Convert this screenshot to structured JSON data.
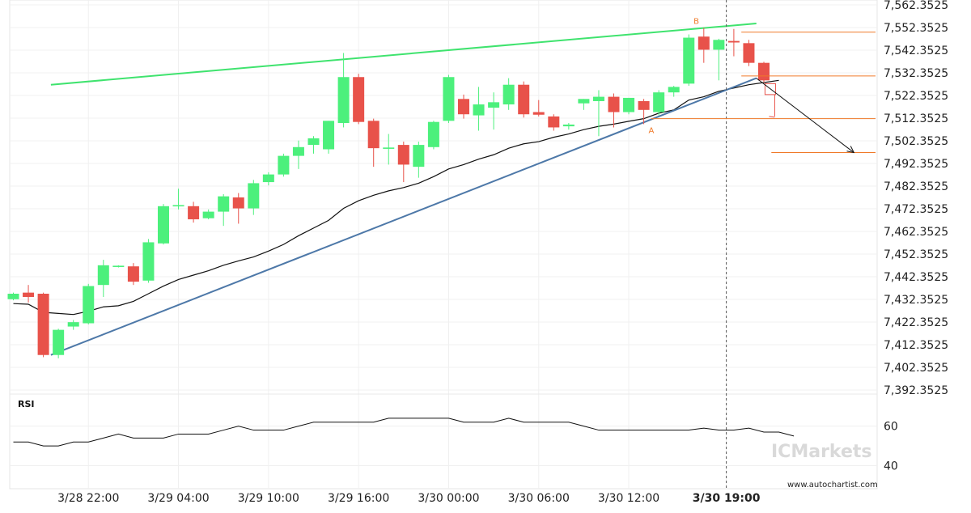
{
  "chart_data": {
    "type": "candlestick",
    "instrument_timeframe": "hourly",
    "colors": {
      "up": "#4cf07c",
      "down": "#e8524a",
      "trend_up": "#3fe36e",
      "trend_support": "#4d78a8",
      "ma": "#111111",
      "level": "#f07a2a",
      "forecast_arrow": "#111111"
    },
    "price_axis": {
      "ticks": [
        "7,562.3525",
        "7,552.3525",
        "7,542.3525",
        "7,532.3525",
        "7,522.3525",
        "7,512.3525",
        "7,502.3525",
        "7,492.3525",
        "7,482.3525",
        "7,472.3525",
        "7,462.3525",
        "7,452.3525",
        "7,442.3525",
        "7,432.3525",
        "7,422.3525",
        "7,412.3525",
        "7,402.3525",
        "7,392.3525"
      ],
      "range": [
        7388.0,
        7564.0
      ]
    },
    "time_axis": {
      "labels": [
        "3/28 22:00",
        "3/29 04:00",
        "3/29 10:00",
        "3/29 16:00",
        "3/30 00:00",
        "3/30 06:00",
        "3/30 12:00",
        "3/30 19:00"
      ],
      "label_candle_index": [
        5,
        11,
        17,
        23,
        29,
        35,
        41,
        47.5
      ],
      "current_label": "3/30 19:00"
    },
    "candles": [
      {
        "o": 7429.5,
        "h": 7432.5,
        "l": 7429.0,
        "c": 7432.0
      },
      {
        "o": 7432.5,
        "h": 7436.0,
        "l": 7428.0,
        "c": 7430.5
      },
      {
        "o": 7432.0,
        "h": 7432.5,
        "l": 7403.0,
        "c": 7404.0
      },
      {
        "o": 7404.0,
        "h": 7416.0,
        "l": 7402.5,
        "c": 7415.5
      },
      {
        "o": 7417.0,
        "h": 7420.0,
        "l": 7415.5,
        "c": 7419.0
      },
      {
        "o": 7418.5,
        "h": 7436.5,
        "l": 7418.0,
        "c": 7435.5
      },
      {
        "o": 7436.0,
        "h": 7447.5,
        "l": 7430.5,
        "c": 7445.0
      },
      {
        "o": 7444.5,
        "h": 7445.0,
        "l": 7444.0,
        "c": 7444.8
      },
      {
        "o": 7444.5,
        "h": 7446.0,
        "l": 7436.0,
        "c": 7437.5
      },
      {
        "o": 7438.0,
        "h": 7457.0,
        "l": 7437.0,
        "c": 7455.5
      },
      {
        "o": 7455.0,
        "h": 7473.0,
        "l": 7454.5,
        "c": 7472.0
      },
      {
        "o": 7472.0,
        "h": 7480.0,
        "l": 7470.5,
        "c": 7472.5
      },
      {
        "o": 7472.0,
        "h": 7474.0,
        "l": 7464.5,
        "c": 7466.0
      },
      {
        "o": 7466.5,
        "h": 7470.5,
        "l": 7466.0,
        "c": 7469.5
      },
      {
        "o": 7469.5,
        "h": 7477.5,
        "l": 7463.0,
        "c": 7476.5
      },
      {
        "o": 7476.0,
        "h": 7478.0,
        "l": 7464.0,
        "c": 7471.0
      },
      {
        "o": 7471.0,
        "h": 7484.0,
        "l": 7468.0,
        "c": 7482.5
      },
      {
        "o": 7483.0,
        "h": 7487.5,
        "l": 7481.5,
        "c": 7486.5
      },
      {
        "o": 7486.5,
        "h": 7496.0,
        "l": 7485.5,
        "c": 7495.0
      },
      {
        "o": 7495.0,
        "h": 7502.0,
        "l": 7489.0,
        "c": 7499.0
      },
      {
        "o": 7500.0,
        "h": 7504.0,
        "l": 7496.0,
        "c": 7503.0
      },
      {
        "o": 7498.0,
        "h": 7511.0,
        "l": 7496.0,
        "c": 7511.0
      },
      {
        "o": 7510.0,
        "h": 7542.0,
        "l": 7508.0,
        "c": 7531.0
      },
      {
        "o": 7531.0,
        "h": 7532.5,
        "l": 7509.5,
        "c": 7510.5
      },
      {
        "o": 7511.0,
        "h": 7512.0,
        "l": 7490.0,
        "c": 7498.5
      },
      {
        "o": 7498.5,
        "h": 7505.0,
        "l": 7491.0,
        "c": 7498.8
      },
      {
        "o": 7500.0,
        "h": 7501.5,
        "l": 7483.0,
        "c": 7491.0
      },
      {
        "o": 7490.0,
        "h": 7501.5,
        "l": 7485.0,
        "c": 7500.0
      },
      {
        "o": 7499.0,
        "h": 7511.0,
        "l": 7498.0,
        "c": 7510.5
      },
      {
        "o": 7511.0,
        "h": 7532.0,
        "l": 7510.0,
        "c": 7531.0
      },
      {
        "o": 7521.0,
        "h": 7523.0,
        "l": 7512.0,
        "c": 7514.0
      },
      {
        "o": 7513.5,
        "h": 7526.5,
        "l": 7506.5,
        "c": 7518.5
      },
      {
        "o": 7517.0,
        "h": 7524.0,
        "l": 7507.0,
        "c": 7519.5
      },
      {
        "o": 7518.5,
        "h": 7530.5,
        "l": 7516.0,
        "c": 7527.5
      },
      {
        "o": 7527.5,
        "h": 7529.0,
        "l": 7512.5,
        "c": 7514.0
      },
      {
        "o": 7515.0,
        "h": 7520.5,
        "l": 7513.0,
        "c": 7513.8
      },
      {
        "o": 7513.0,
        "h": 7514.0,
        "l": 7506.5,
        "c": 7508.0
      },
      {
        "o": 7508.5,
        "h": 7510.0,
        "l": 7507.0,
        "c": 7509.3
      },
      {
        "o": 7519.0,
        "h": 7521.0,
        "l": 7516.0,
        "c": 7521.0
      },
      {
        "o": 7520.0,
        "h": 7525.0,
        "l": 7504.0,
        "c": 7522.0
      },
      {
        "o": 7522.0,
        "h": 7523.5,
        "l": 7508.0,
        "c": 7515.0
      },
      {
        "o": 7515.0,
        "h": 7521.5,
        "l": 7514.0,
        "c": 7521.5
      },
      {
        "o": 7520.0,
        "h": 7521.0,
        "l": 7509.5,
        "c": 7516.0
      },
      {
        "o": 7515.0,
        "h": 7525.0,
        "l": 7513.5,
        "c": 7524.0
      },
      {
        "o": 7524.0,
        "h": 7527.0,
        "l": 7522.0,
        "c": 7526.5
      },
      {
        "o": 7528.0,
        "h": 7550.5,
        "l": 7527.0,
        "c": 7549.0
      },
      {
        "o": 7549.5,
        "h": 7553.5,
        "l": 7537.5,
        "c": 7543.5
      },
      {
        "o": 7543.5,
        "h": 7548.5,
        "l": 7529.5,
        "c": 7548.0
      },
      {
        "o": 7547.5,
        "h": 7553.0,
        "l": 7540.5,
        "c": 7546.8
      },
      {
        "o": 7546.5,
        "h": 7548.0,
        "l": 7536.0,
        "c": 7537.5
      },
      {
        "o": 7537.5,
        "h": 7538.0,
        "l": 7528.5,
        "c": 7529.5
      }
    ],
    "moving_average": [
      [
        0,
        7427.5
      ],
      [
        1,
        7427.2
      ],
      [
        2,
        7423.5
      ],
      [
        3,
        7423.0
      ],
      [
        4,
        7422.5
      ],
      [
        5,
        7424.0
      ],
      [
        6,
        7426.0
      ],
      [
        7,
        7426.5
      ],
      [
        8,
        7428.5
      ],
      [
        9,
        7432.0
      ],
      [
        10,
        7435.5
      ],
      [
        11,
        7438.5
      ],
      [
        12,
        7440.5
      ],
      [
        13,
        7442.5
      ],
      [
        14,
        7445.0
      ],
      [
        15,
        7447.0
      ],
      [
        16,
        7448.8
      ],
      [
        17,
        7451.5
      ],
      [
        18,
        7454.5
      ],
      [
        19,
        7458.5
      ],
      [
        20,
        7462.0
      ],
      [
        21,
        7465.5
      ],
      [
        22,
        7471.0
      ],
      [
        23,
        7474.5
      ],
      [
        24,
        7477.0
      ],
      [
        25,
        7479.0
      ],
      [
        26,
        7480.5
      ],
      [
        27,
        7482.5
      ],
      [
        28,
        7485.5
      ],
      [
        29,
        7489.0
      ],
      [
        30,
        7491.0
      ],
      [
        31,
        7493.5
      ],
      [
        32,
        7495.5
      ],
      [
        33,
        7498.5
      ],
      [
        34,
        7500.5
      ],
      [
        35,
        7501.5
      ],
      [
        36,
        7503.5
      ],
      [
        37,
        7505.0
      ],
      [
        38,
        7507.0
      ],
      [
        39,
        7508.5
      ],
      [
        40,
        7509.5
      ],
      [
        41,
        7510.8
      ],
      [
        42,
        7512.0
      ],
      [
        43,
        7514.5
      ],
      [
        44,
        7516.0
      ],
      [
        45,
        7520.5
      ],
      [
        46,
        7522.0
      ],
      [
        47,
        7524.5
      ],
      [
        48,
        7526.0
      ],
      [
        49,
        7527.5
      ],
      [
        50,
        7528.5
      ],
      [
        51,
        7529.5
      ]
    ],
    "trendlines": [
      {
        "name": "resistance",
        "from": [
          2.5,
          7527.5
        ],
        "to": [
          49.5,
          7555.5
        ]
      },
      {
        "name": "support",
        "from": [
          2.5,
          7404.0
        ],
        "to": [
          49.5,
          7530.5
        ]
      }
    ],
    "levels": [
      {
        "price": 7551.5,
        "from_index": 48.5,
        "label": ""
      },
      {
        "price": 7531.5,
        "from_index": 48.5,
        "label": ""
      },
      {
        "price": 7512.0,
        "from_index": 42.5,
        "label": ""
      },
      {
        "price": 7496.5,
        "from_index": 50.5,
        "label": ""
      }
    ],
    "point_labels": [
      {
        "text": "B",
        "index": 45.5,
        "price": 7554.5
      },
      {
        "text": "A",
        "index": 42.5,
        "price": 7509.5
      }
    ],
    "current_candle": {
      "index": 50.4,
      "o": 7528.0,
      "c": 7523.0,
      "high_marker": 7513.0
    },
    "forecast_arrow": {
      "from": [
        49.5,
        7530.5
      ],
      "to": [
        56.0,
        7496.5
      ]
    },
    "rsi": {
      "label": "RSI",
      "ticks": [
        "60",
        "40"
      ],
      "range": [
        30,
        75
      ],
      "values": [
        52,
        52,
        50,
        50,
        52,
        52,
        54,
        56,
        54,
        54,
        54,
        56,
        56,
        56,
        58,
        60,
        58,
        58,
        58,
        60,
        62,
        62,
        62,
        62,
        62,
        64,
        64,
        64,
        64,
        64,
        62,
        62,
        62,
        64,
        62,
        62,
        62,
        62,
        60,
        58,
        58,
        58,
        58,
        58,
        58,
        58,
        59,
        58,
        58,
        59,
        57,
        57,
        55
      ]
    }
  },
  "brand": {
    "name": "ICMarkets",
    "prefix": "IC",
    "suffix": "Markets"
  },
  "watermark_url": "www.autochartist.com"
}
